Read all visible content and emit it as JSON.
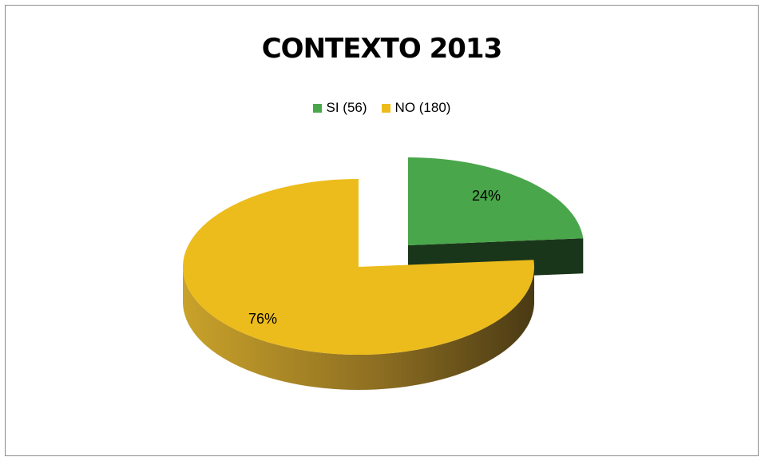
{
  "chart_data": {
    "type": "pie",
    "title": "CONTEXTO 2013",
    "legend_position": "top",
    "slices": [
      {
        "label": "SI (56)",
        "value": 56,
        "percent_label": "24%",
        "color": "#4aa64a",
        "side_color": "#1f3d1f"
      },
      {
        "label": "NO (180)",
        "value": 180,
        "percent_label": "76%",
        "color": "#ecbc1c",
        "side_color": "#6b5218"
      }
    ]
  }
}
